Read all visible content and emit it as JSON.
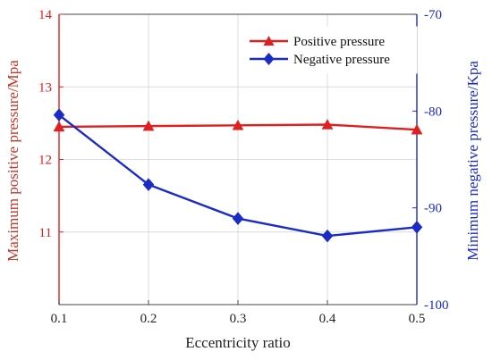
{
  "chart_data": {
    "type": "line",
    "x": [
      0.1,
      0.2,
      0.3,
      0.4,
      0.5
    ],
    "xlabel": "Eccentricity ratio",
    "xlim": [
      0.1,
      0.5
    ],
    "xticks": [
      "0.1",
      "0.2",
      "0.3",
      "0.4",
      "0.5"
    ],
    "y_left": {
      "label": "Maximum positive pressure/Mpa",
      "lim": [
        10,
        14
      ],
      "ticks": [
        "11",
        "12",
        "13",
        "14"
      ],
      "color": "#e02020"
    },
    "y_right": {
      "label": "Minimum negative pressure/Kpa",
      "lim": [
        -100,
        -70
      ],
      "ticks": [
        "-70",
        "-80",
        "-90",
        "-100"
      ],
      "color": "#1a2bc8"
    },
    "series": [
      {
        "name": "Positive pressure",
        "axis": "left",
        "marker": "triangle",
        "color": "#e02020",
        "values": [
          12.45,
          12.46,
          12.47,
          12.48,
          12.41
        ]
      },
      {
        "name": "Negative pressure",
        "axis": "right",
        "marker": "diamond",
        "color": "#1a2bc8",
        "values": [
          -80.4,
          -87.6,
          -91.1,
          -92.9,
          -92.0
        ]
      }
    ],
    "grid": true,
    "legend_position": "top-right"
  }
}
